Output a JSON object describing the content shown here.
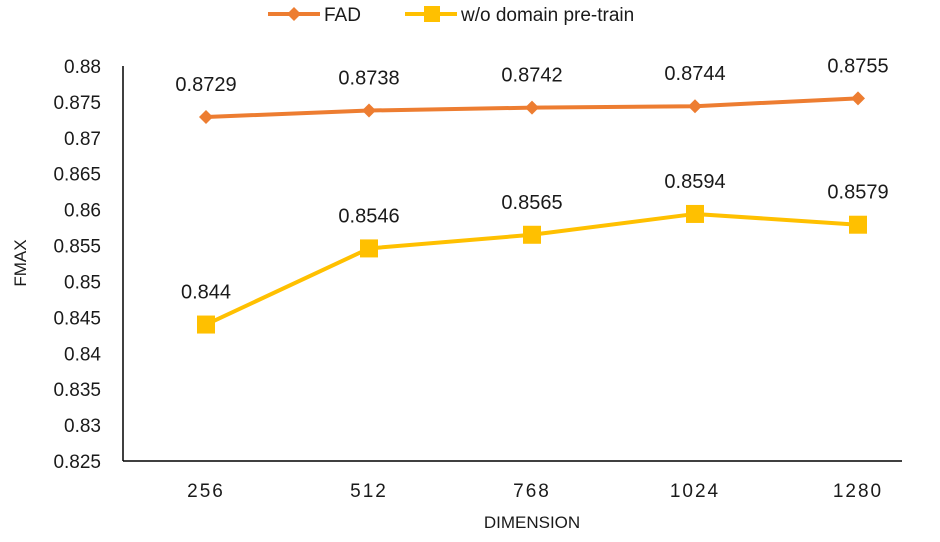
{
  "chart_data": {
    "type": "line",
    "title": "",
    "xlabel": "DIMENSION",
    "ylabel": "FMAX",
    "categories": [
      "256",
      "512",
      "768",
      "1024",
      "1280"
    ],
    "ylim": [
      0.825,
      0.88
    ],
    "yticks": [
      "0.825",
      "0.83",
      "0.835",
      "0.84",
      "0.845",
      "0.85",
      "0.855",
      "0.86",
      "0.865",
      "0.87",
      "0.875",
      "0.88"
    ],
    "grid": false,
    "legend_position": "top",
    "series": [
      {
        "name": "FAD",
        "values": [
          0.8729,
          0.8738,
          0.8742,
          0.8744,
          0.8755
        ],
        "labels": [
          "0.8729",
          "0.8738",
          "0.8742",
          "0.8744",
          "0.8755"
        ],
        "color": "#ED7D31",
        "marker": "diamond"
      },
      {
        "name": "w/o domain pre-train",
        "values": [
          0.844,
          0.8546,
          0.8565,
          0.8594,
          0.8579
        ],
        "labels": [
          "0.844",
          "0.8546",
          "0.8565",
          "0.8594",
          "0.8579"
        ],
        "color": "#FFC000",
        "marker": "square"
      }
    ]
  }
}
